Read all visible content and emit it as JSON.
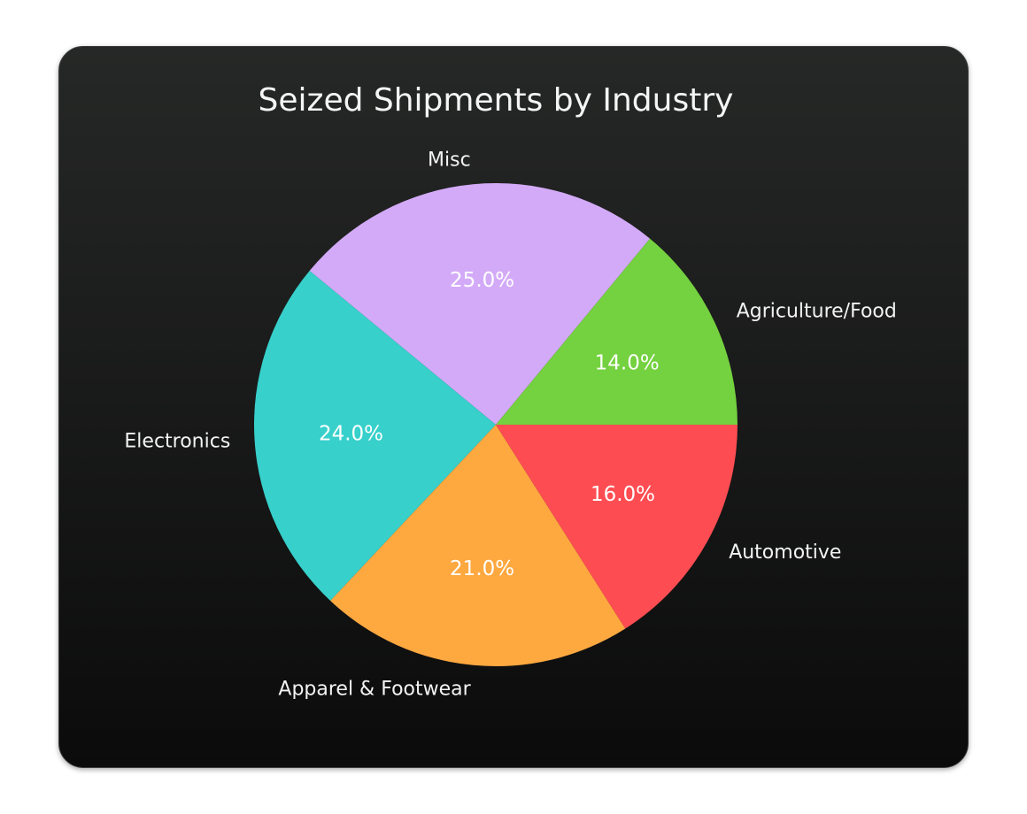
{
  "chart_data": {
    "type": "pie",
    "title": "Seized Shipments by Industry",
    "start_angle_deg": 0,
    "direction": "counterclockwise",
    "slices": [
      {
        "label": "Agriculture/Food",
        "value": 14.0,
        "pct_text": "14.0%",
        "color": "#74d13f"
      },
      {
        "label": "Misc",
        "value": 25.0,
        "pct_text": "25.0%",
        "color": "#d3aaf8"
      },
      {
        "label": "Electronics",
        "value": 24.0,
        "pct_text": "24.0%",
        "color": "#37d0cb"
      },
      {
        "label": "Apparel & Footwear",
        "value": 21.0,
        "pct_text": "21.0%",
        "color": "#fea840"
      },
      {
        "label": "Automotive",
        "value": 16.0,
        "pct_text": "16.0%",
        "color": "#fe4d52"
      }
    ]
  }
}
